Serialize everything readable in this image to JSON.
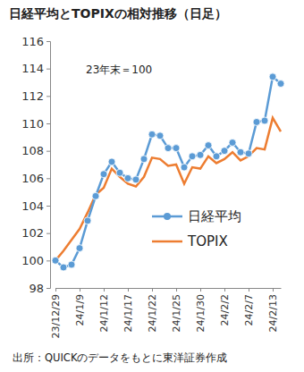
{
  "chart_data": {
    "type": "line",
    "title": "日経平均とTOPIXの相対推移（日足）",
    "annotations": [
      "23年末＝100"
    ],
    "source": "出所：QUICKのデータをもとに東洋証券作成",
    "categories": [
      "23/12/29",
      null,
      null,
      "24/1/9",
      null,
      null,
      "24/1/12",
      null,
      null,
      "24/1/17",
      null,
      null,
      "24/1/22",
      null,
      null,
      "24/1/25",
      null,
      null,
      "24/1/30",
      null,
      null,
      "24/2/2",
      null,
      null,
      "24/2/7",
      null,
      null,
      "24/2/13",
      null
    ],
    "series": [
      {
        "name": "日経平均",
        "color": "#5b9bd5",
        "marker": "circle",
        "line_style": "solid",
        "values": [
          100,
          99.5,
          99.7,
          100.9,
          102.9,
          104.7,
          106.3,
          107.2,
          106.4,
          106.0,
          105.9,
          107.4,
          109.2,
          109.1,
          108.2,
          108.2,
          106.8,
          107.6,
          107.7,
          108.4,
          107.6,
          108.0,
          108.6,
          107.9,
          107.8,
          110.1,
          110.2,
          113.4,
          112.9
        ]
      },
      {
        "name": "TOPIX",
        "color": "#ed7d31",
        "marker": "none",
        "line_style": "solid",
        "values": [
          100,
          100.7,
          101.5,
          102.3,
          103.5,
          104.8,
          105.3,
          106.7,
          106.1,
          105.6,
          105.4,
          106.1,
          107.5,
          107.4,
          106.9,
          107.0,
          105.6,
          106.8,
          106.7,
          107.6,
          107.1,
          107.4,
          107.9,
          107.3,
          107.6,
          108.2,
          108.1,
          110.4,
          109.4
        ]
      }
    ],
    "ylim": [
      98,
      116
    ],
    "yticks": [
      98,
      100,
      102,
      104,
      106,
      108,
      110,
      112,
      114,
      116
    ],
    "grid": false,
    "legend": "lower right"
  }
}
